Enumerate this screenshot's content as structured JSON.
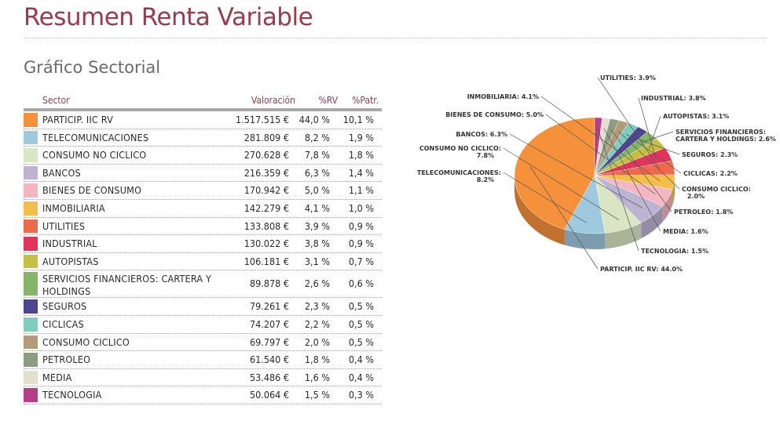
{
  "page": {
    "title": "Resumen Renta Variable",
    "section_title": "Gráfico Sectorial"
  },
  "table": {
    "headers": {
      "sector": "Sector",
      "valoracion": "Valoración",
      "rv": "%RV",
      "patr": "%Patr."
    },
    "rows": [
      {
        "sector": "PARTICIP. IIC RV",
        "valoracion": "1.517.515 €",
        "rv": "44,0 %",
        "patr": "10,1 %",
        "color": "#f5913a"
      },
      {
        "sector": "TELECOMUNICACIONES",
        "valoracion": "281.809 €",
        "rv": "8,2 %",
        "patr": "1,9 %",
        "color": "#9ec9df"
      },
      {
        "sector": "CONSUMO NO CICLICO",
        "valoracion": "270.628 €",
        "rv": "7,8 %",
        "patr": "1,8 %",
        "color": "#d9e6c3"
      },
      {
        "sector": "BANCOS",
        "valoracion": "216.359 €",
        "rv": "6,3 %",
        "patr": "1,4 %",
        "color": "#bdb4d3"
      },
      {
        "sector": "BIENES DE CONSUMO",
        "valoracion": "170.942 €",
        "rv": "5,0 %",
        "patr": "1,1 %",
        "color": "#f4b6c0"
      },
      {
        "sector": "INMOBILIARIA",
        "valoracion": "142.279 €",
        "rv": "4,1 %",
        "patr": "1,0 %",
        "color": "#f2c04a"
      },
      {
        "sector": "UTILITIES",
        "valoracion": "133.808 €",
        "rv": "3,9 %",
        "patr": "0,9 %",
        "color": "#ef6a4d"
      },
      {
        "sector": "INDUSTRIAL",
        "valoracion": "130.022 €",
        "rv": "3,8 %",
        "patr": "0,9 %",
        "color": "#e2345c"
      },
      {
        "sector": "AUTOPISTAS",
        "valoracion": "106.181 €",
        "rv": "3,1 %",
        "patr": "0,7 %",
        "color": "#c5c043"
      },
      {
        "sector": "SERVICIOS FINANCIEROS: CARTERA Y HOLDINGS",
        "valoracion": "89.878 €",
        "rv": "2,6 %",
        "patr": "0,6 %",
        "color": "#86b468"
      },
      {
        "sector": "SEGUROS",
        "valoracion": "79.261 €",
        "rv": "2,3 %",
        "patr": "0,5 %",
        "color": "#4e4590"
      },
      {
        "sector": "CICLICAS",
        "valoracion": "74.207 €",
        "rv": "2,2 %",
        "patr": "0,5 %",
        "color": "#7ecdbf"
      },
      {
        "sector": "CONSUMO CICLICO",
        "valoracion": "69.797 €",
        "rv": "2,0 %",
        "patr": "0,5 %",
        "color": "#b39a78"
      },
      {
        "sector": "PETROLEO",
        "valoracion": "61.540 €",
        "rv": "1,8 %",
        "patr": "0,4 %",
        "color": "#8e9c80"
      },
      {
        "sector": "MEDIA",
        "valoracion": "53.486 €",
        "rv": "1,6 %",
        "patr": "0,4 %",
        "color": "#e4ded0"
      },
      {
        "sector": "TECNOLOGIA",
        "valoracion": "50.064 €",
        "rv": "1,5 %",
        "patr": "0,3 %",
        "color": "#b83d88"
      }
    ]
  },
  "chart_data": {
    "type": "pie",
    "title": "",
    "labels": [
      "PARTICIP. IIC RV: 44.0%",
      "TELECOMUNICACIONES: 8.2%",
      "CONSUMO NO CICLICO: 7.8%",
      "BANCOS: 6.3%",
      "BIENES DE CONSUMO: 5.0%",
      "INMOBILIARIA: 4.1%",
      "UTILITIES: 3.9%",
      "INDUSTRIAL: 3.8%",
      "AUTOPISTAS: 3.1%",
      "SERVICIOS FINANCIEROS: CARTERA Y HOLDINGS: 2.6%",
      "SEGUROS: 2.3%",
      "CICLICAS: 2.2%",
      "CONSUMO CICLICO: 2.0%",
      "PETROLEO: 1.8%",
      "MEDIA: 1.6%",
      "TECNOLOGIA: 1.5%"
    ],
    "values": [
      44.0,
      8.2,
      7.8,
      6.3,
      5.0,
      4.1,
      3.9,
      3.8,
      3.1,
      2.6,
      2.3,
      2.2,
      2.0,
      1.8,
      1.6,
      1.5
    ],
    "colors": [
      "#f5913a",
      "#9ec9df",
      "#d9e6c3",
      "#bdb4d3",
      "#f4b6c0",
      "#f2c04a",
      "#ef6a4d",
      "#e2345c",
      "#c5c043",
      "#86b468",
      "#4e4590",
      "#7ecdbf",
      "#b39a78",
      "#8e9c80",
      "#e4ded0",
      "#b83d88"
    ],
    "style": "3d"
  }
}
